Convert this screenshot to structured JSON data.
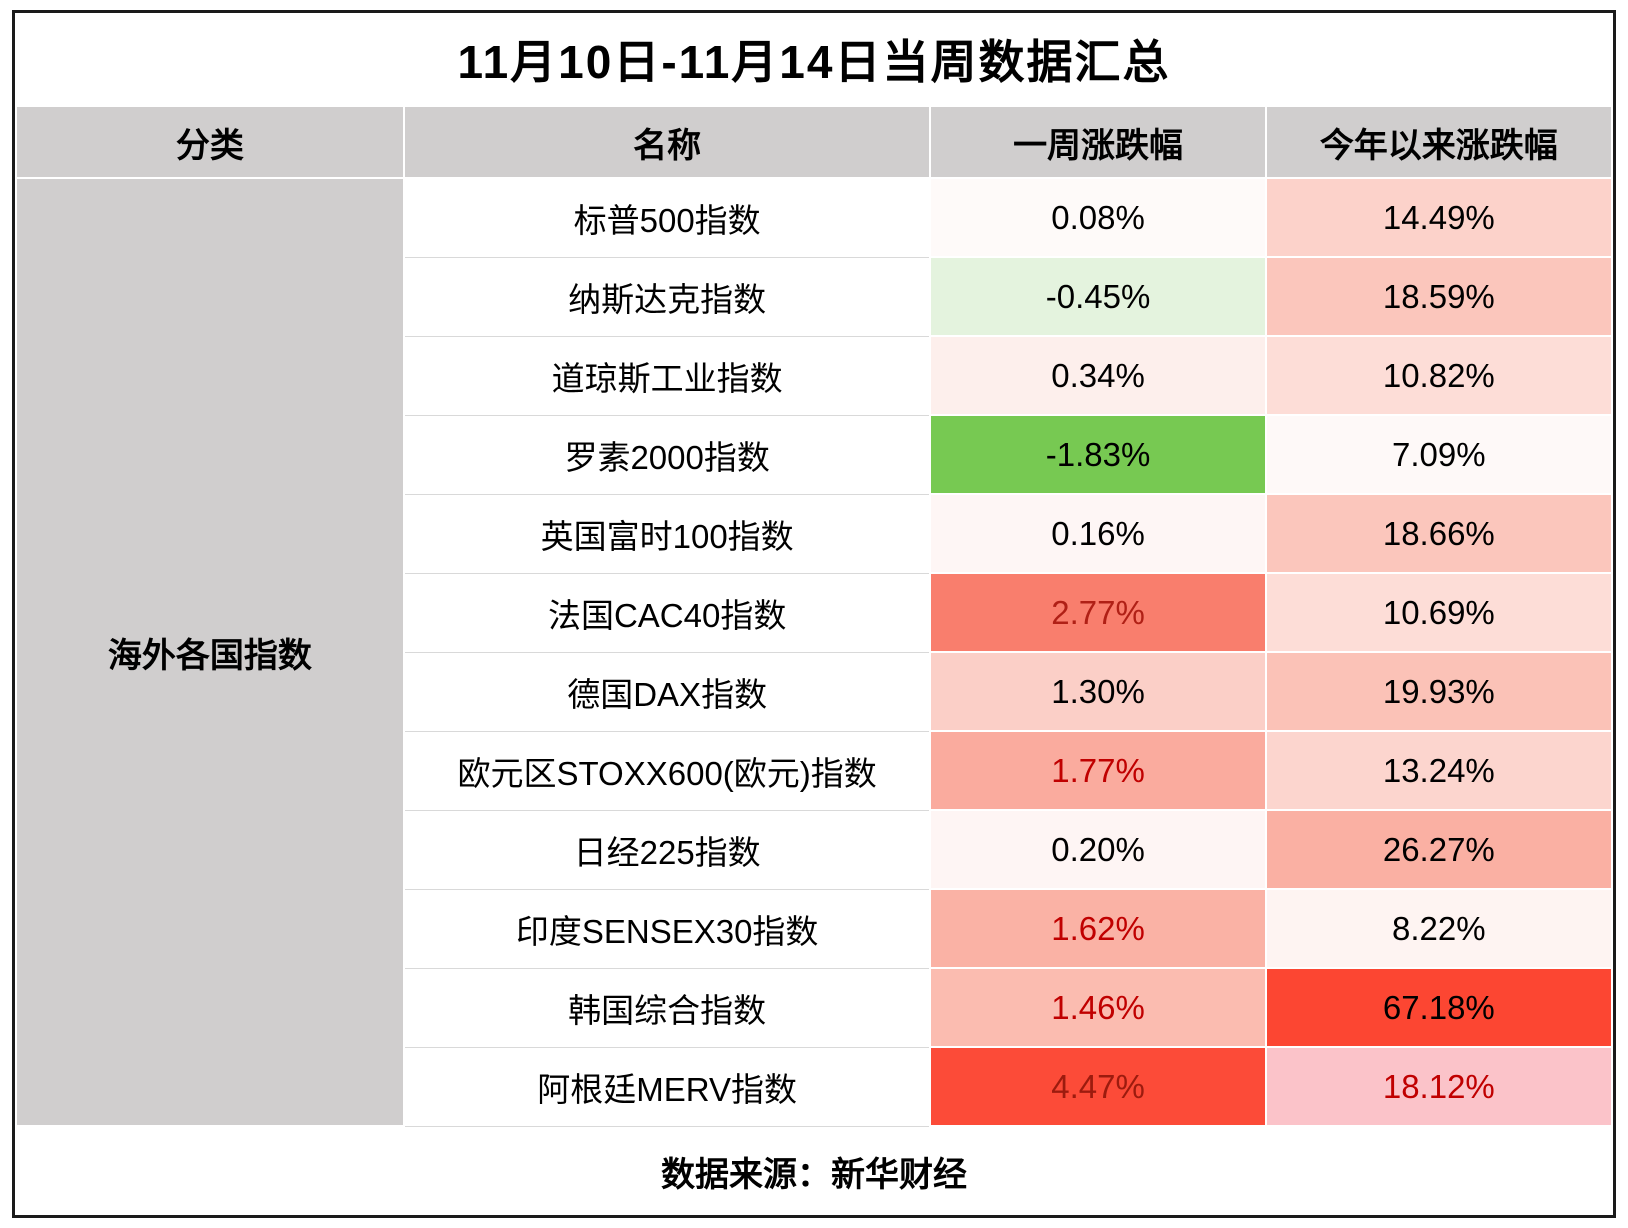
{
  "title": "11月10日-11月14日当周数据汇总",
  "header": {
    "category": "分类",
    "name": "名称",
    "week": "一周涨跌幅",
    "ytd": "今年以来涨跌幅"
  },
  "footer": "数据来源：新华财经",
  "colors": {
    "header_bg": "#d0cece",
    "category_bg": "#d0cece",
    "frame_border": "#1a1a1a",
    "negative_green_strong": "#77c952",
    "negative_green_light": "#e4f3de",
    "positive_red_strong": "#fc4b38",
    "red_text": "#c00000"
  },
  "chart_data": {
    "type": "table",
    "title": "11月10日-11月14日当周数据汇总",
    "columns": [
      "分类",
      "名称",
      "一周涨跌幅",
      "今年以来涨跌幅"
    ],
    "category": "海外各国指数",
    "source": "数据来源：新华财经",
    "rows": [
      {
        "name": "标普500指数",
        "week_change": "0.08%",
        "ytd_change": "14.49%",
        "week_bg": "#fefaf9",
        "week_text": "#000000",
        "ytd_bg": "#fcd2ca",
        "ytd_text": "#000000"
      },
      {
        "name": "纳斯达克指数",
        "week_change": "-0.45%",
        "ytd_change": "18.59%",
        "week_bg": "#e4f3de",
        "week_text": "#000000",
        "ytd_bg": "#fbc6bc",
        "ytd_text": "#000000"
      },
      {
        "name": "道琼斯工业指数",
        "week_change": "0.34%",
        "ytd_change": "10.82%",
        "week_bg": "#fdefec",
        "week_text": "#000000",
        "ytd_bg": "#fdddd7",
        "ytd_text": "#000000"
      },
      {
        "name": "罗素2000指数",
        "week_change": "-1.83%",
        "ytd_change": "7.09%",
        "week_bg": "#77c952",
        "week_text": "#000000",
        "ytd_bg": "#fef9f8",
        "ytd_text": "#000000"
      },
      {
        "name": "英国富时100指数",
        "week_change": "0.16%",
        "ytd_change": "18.66%",
        "week_bg": "#fef6f5",
        "week_text": "#000000",
        "ytd_bg": "#fbc6bc",
        "ytd_text": "#000000"
      },
      {
        "name": "法国CAC40指数",
        "week_change": "2.77%",
        "ytd_change": "10.69%",
        "week_bg": "#f97e6d",
        "week_text": "#b02016",
        "ytd_bg": "#fdddd7",
        "ytd_text": "#000000"
      },
      {
        "name": "德国DAX指数",
        "week_change": "1.30%",
        "ytd_change": "19.93%",
        "week_bg": "#fbcfc7",
        "week_text": "#000000",
        "ytd_bg": "#fbc2b7",
        "ytd_text": "#000000"
      },
      {
        "name": "欧元区STOXX600(欧元)指数",
        "week_change": "1.77%",
        "ytd_change": "13.24%",
        "week_bg": "#faab9e",
        "week_text": "#c00000",
        "ytd_bg": "#fcd5ce",
        "ytd_text": "#000000"
      },
      {
        "name": "日经225指数",
        "week_change": "0.20%",
        "ytd_change": "26.27%",
        "week_bg": "#fef5f4",
        "week_text": "#000000",
        "ytd_bg": "#fab0a3",
        "ytd_text": "#000000"
      },
      {
        "name": "印度SENSEX30指数",
        "week_change": "1.62%",
        "ytd_change": "8.22%",
        "week_bg": "#fab2a5",
        "week_text": "#c00000",
        "ytd_bg": "#fef4f2",
        "ytd_text": "#000000"
      },
      {
        "name": "韩国综合指数",
        "week_change": "1.46%",
        "ytd_change": "67.18%",
        "week_bg": "#fbbcb0",
        "week_text": "#c00000",
        "ytd_bg": "#fc4632",
        "ytd_text": "#000000"
      },
      {
        "name": "阿根廷MERV指数",
        "week_change": "4.47%",
        "ytd_change": "18.12%",
        "week_bg": "#fc4b38",
        "week_text": "#9c1b0e",
        "ytd_bg": "#fbc3c9",
        "ytd_text": "#c00000"
      }
    ]
  }
}
